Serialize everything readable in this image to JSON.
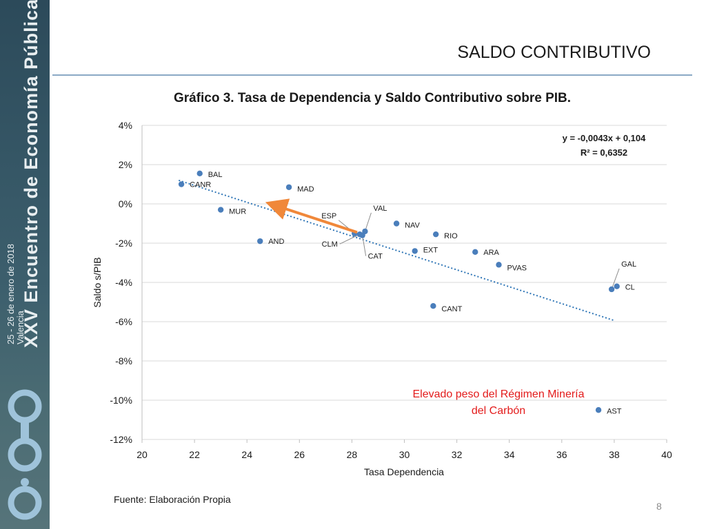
{
  "sidebar": {
    "title": "XXV Encuentro de Economía Pública",
    "date": "25 - 26 de enero de 2018",
    "city": "Valencia",
    "logo_text": "ieep"
  },
  "slide": {
    "title": "SALDO CONTRIBUTIVO",
    "source": "Fuente: Elaboración Propia",
    "page_number": "8"
  },
  "colors": {
    "point": "#4a7ebb",
    "trend": "#2e75b6",
    "arrow": "#f0883a",
    "annotation": "#e31b1b",
    "grid": "#d9d9d9"
  },
  "chart_data": {
    "type": "scatter",
    "title": "Gráfico 3. Tasa de Dependencia y Saldo Contributivo sobre PIB.",
    "xlabel": "Tasa Dependencia",
    "ylabel": "Saldo s/PIB",
    "xlim": [
      20,
      40
    ],
    "ylim": [
      -12,
      4
    ],
    "x_ticks": [
      20,
      22,
      24,
      26,
      28,
      30,
      32,
      34,
      36,
      38,
      40
    ],
    "y_ticks": [
      4,
      2,
      0,
      -2,
      -4,
      -6,
      -8,
      -10,
      -12
    ],
    "y_tick_labels": [
      "4%",
      "2%",
      "0%",
      "-2%",
      "-4%",
      "-6%",
      "-8%",
      "-10%",
      "-12%"
    ],
    "grid": true,
    "points": [
      {
        "label": "BAL",
        "x": 22.2,
        "y": 1.55
      },
      {
        "label": "CANR",
        "x": 21.5,
        "y": 1.0
      },
      {
        "label": "MAD",
        "x": 25.6,
        "y": 0.85
      },
      {
        "label": "MUR",
        "x": 23.0,
        "y": -0.3
      },
      {
        "label": "AND",
        "x": 24.5,
        "y": -1.9
      },
      {
        "label": "ESP",
        "x": 28.1,
        "y": -1.5
      },
      {
        "label": "CLM",
        "x": 28.3,
        "y": -1.55
      },
      {
        "label": "VAL",
        "x": 28.5,
        "y": -1.4
      },
      {
        "label": "CAT",
        "x": 28.4,
        "y": -1.6
      },
      {
        "label": "NAV",
        "x": 29.7,
        "y": -1.0
      },
      {
        "label": "RIO",
        "x": 31.2,
        "y": -1.55
      },
      {
        "label": "EXT",
        "x": 30.4,
        "y": -2.4
      },
      {
        "label": "ARA",
        "x": 32.7,
        "y": -2.45
      },
      {
        "label": "PVAS",
        "x": 33.6,
        "y": -3.1
      },
      {
        "label": "GAL",
        "x": 37.9,
        "y": -4.35
      },
      {
        "label": "CL",
        "x": 38.1,
        "y": -4.2
      },
      {
        "label": "CANT",
        "x": 31.1,
        "y": -5.2
      },
      {
        "label": "AST",
        "x": 37.4,
        "y": -10.5
      }
    ],
    "trendline": {
      "equation": "y = -0,0043x + 0,104",
      "r2": "R² = 0,6352",
      "slope": -0.0043,
      "intercept": 0.104,
      "x_from": 21.4,
      "x_to": 38.0
    },
    "arrow": {
      "from": [
        28.2,
        -1.45
      ],
      "to": [
        24.9,
        0.0
      ]
    },
    "annotation": [
      "Elevado peso del Régimen Minería",
      "del Carbón"
    ]
  }
}
